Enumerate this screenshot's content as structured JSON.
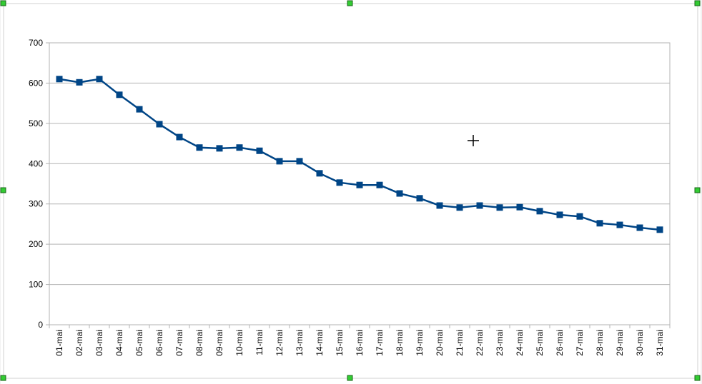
{
  "chart_data": {
    "type": "line",
    "categories": [
      "01-mai",
      "02-mai",
      "03-mai",
      "04-mai",
      "05-mai",
      "06-mai",
      "07-mai",
      "08-mai",
      "09-mai",
      "10-mai",
      "11-mai",
      "12-mai",
      "13-mai",
      "14-mai",
      "15-mai",
      "16-mai",
      "17-mai",
      "18-mai",
      "19-mai",
      "20-mai",
      "21-mai",
      "22-mai",
      "23-mai",
      "24-mai",
      "25-mai",
      "26-mai",
      "27-mai",
      "28-mai",
      "29-mai",
      "30-mai",
      "31-mai"
    ],
    "values": [
      610,
      602,
      610,
      571,
      535,
      498,
      466,
      440,
      438,
      440,
      432,
      406,
      406,
      376,
      353,
      347,
      347,
      326,
      314,
      296,
      291,
      296,
      291,
      292,
      282,
      273,
      269,
      252,
      248,
      241,
      236
    ],
    "color": "#004586",
    "ylim": [
      0,
      700
    ],
    "yticks": [
      0,
      100,
      200,
      300,
      400,
      500,
      600,
      700
    ],
    "grid": true
  }
}
